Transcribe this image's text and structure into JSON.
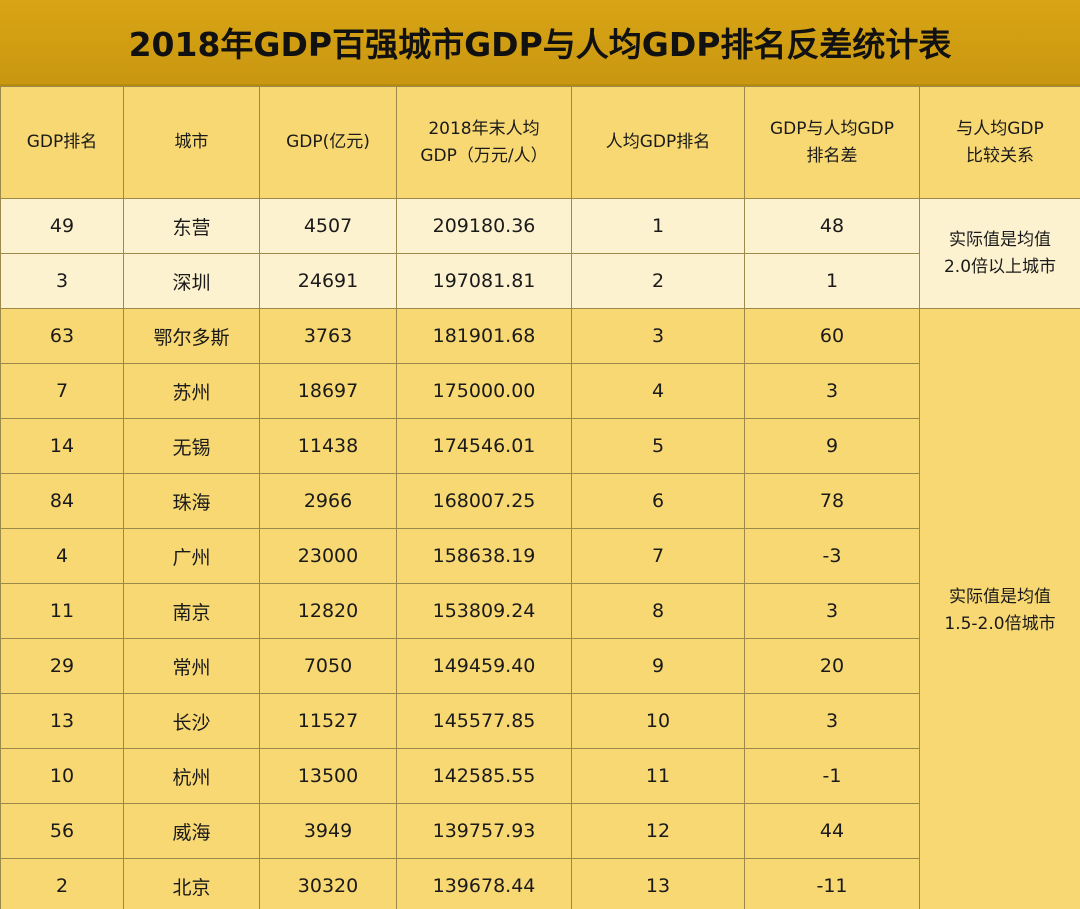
{
  "title": "2018年GDP百强城市GDP与人均GDP排名反差统计表",
  "columns": [
    [
      "GDP排名"
    ],
    [
      "城市"
    ],
    [
      "GDP(亿元)"
    ],
    [
      "2018年末人均",
      "GDP（万元/人）"
    ],
    [
      "人均GDP排名"
    ],
    [
      "GDP与人均GDP",
      "排名差"
    ],
    [
      "与人均GDP",
      "比较关系"
    ]
  ],
  "groups": [
    {
      "lines": [
        "实际值是均值",
        "2.0倍以上城市"
      ],
      "rows": 2
    },
    {
      "lines": [
        "实际值是均值",
        "1.5-2.0倍城市"
      ],
      "rows": 11
    }
  ],
  "rows": [
    {
      "gdp_rank": "49",
      "city": "东营",
      "gdp": "4507",
      "per_capita": "209180.36",
      "per_capita_rank": "1",
      "rank_diff": "48"
    },
    {
      "gdp_rank": "3",
      "city": "深圳",
      "gdp": "24691",
      "per_capita": "197081.81",
      "per_capita_rank": "2",
      "rank_diff": "1"
    },
    {
      "gdp_rank": "63",
      "city": "鄂尔多斯",
      "gdp": "3763",
      "per_capita": "181901.68",
      "per_capita_rank": "3",
      "rank_diff": "60"
    },
    {
      "gdp_rank": "7",
      "city": "苏州",
      "gdp": "18697",
      "per_capita": "175000.00",
      "per_capita_rank": "4",
      "rank_diff": "3"
    },
    {
      "gdp_rank": "14",
      "city": "无锡",
      "gdp": "11438",
      "per_capita": "174546.01",
      "per_capita_rank": "5",
      "rank_diff": "9"
    },
    {
      "gdp_rank": "84",
      "city": "珠海",
      "gdp": "2966",
      "per_capita": "168007.25",
      "per_capita_rank": "6",
      "rank_diff": "78"
    },
    {
      "gdp_rank": "4",
      "city": "广州",
      "gdp": "23000",
      "per_capita": "158638.19",
      "per_capita_rank": "7",
      "rank_diff": "-3"
    },
    {
      "gdp_rank": "11",
      "city": "南京",
      "gdp": "12820",
      "per_capita": "153809.24",
      "per_capita_rank": "8",
      "rank_diff": "3"
    },
    {
      "gdp_rank": "29",
      "city": "常州",
      "gdp": "7050",
      "per_capita": "149459.40",
      "per_capita_rank": "9",
      "rank_diff": "20"
    },
    {
      "gdp_rank": "13",
      "city": "长沙",
      "gdp": "11527",
      "per_capita": "145577.85",
      "per_capita_rank": "10",
      "rank_diff": "3"
    },
    {
      "gdp_rank": "10",
      "city": "杭州",
      "gdp": "13500",
      "per_capita": "142585.55",
      "per_capita_rank": "11",
      "rank_diff": "-1"
    },
    {
      "gdp_rank": "56",
      "city": "威海",
      "gdp": "3949",
      "per_capita": "139757.93",
      "per_capita_rank": "12",
      "rank_diff": "44"
    },
    {
      "gdp_rank": "2",
      "city": "北京",
      "gdp": "30320",
      "per_capita": "139678.44",
      "per_capita_rank": "13",
      "rank_diff": "-11"
    }
  ],
  "colors": {
    "title_bar": "#d9a515",
    "header_bg": "#f8d873",
    "light_row_bg": "#fdf2cf",
    "border": "#9c8a4a"
  }
}
